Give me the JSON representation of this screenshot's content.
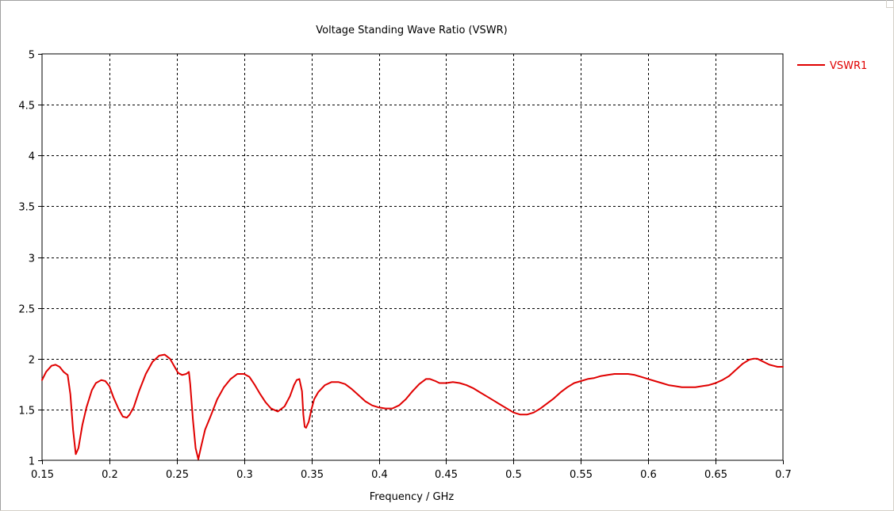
{
  "chart_data": {
    "type": "line",
    "title": "Voltage Standing Wave Ratio (VSWR)",
    "xlabel": "Frequency / GHz",
    "ylabel": "",
    "xlim": [
      0.15,
      0.7
    ],
    "ylim": [
      1,
      5
    ],
    "xticks": [
      "0.15",
      "0.2",
      "0.25",
      "0.3",
      "0.35",
      "0.4",
      "0.45",
      "0.5",
      "0.55",
      "0.6",
      "0.65",
      "0.7"
    ],
    "yticks": [
      "1",
      "1.5",
      "2",
      "2.5",
      "3",
      "3.5",
      "4",
      "4.5",
      "5"
    ],
    "grid": true,
    "legend_position": "top-right",
    "series": [
      {
        "name": "VSWR1",
        "color": "#e00000",
        "x": [
          0.15,
          0.153,
          0.157,
          0.16,
          0.163,
          0.166,
          0.169,
          0.171,
          0.173,
          0.175,
          0.177,
          0.18,
          0.183,
          0.187,
          0.19,
          0.194,
          0.197,
          0.2,
          0.203,
          0.207,
          0.21,
          0.213,
          0.215,
          0.218,
          0.222,
          0.227,
          0.232,
          0.237,
          0.241,
          0.245,
          0.248,
          0.251,
          0.254,
          0.257,
          0.259,
          0.26,
          0.262,
          0.264,
          0.266,
          0.268,
          0.271,
          0.275,
          0.28,
          0.285,
          0.29,
          0.295,
          0.3,
          0.304,
          0.308,
          0.312,
          0.316,
          0.32,
          0.325,
          0.33,
          0.334,
          0.337,
          0.339,
          0.341,
          0.343,
          0.344,
          0.345,
          0.346,
          0.348,
          0.35,
          0.352,
          0.355,
          0.36,
          0.365,
          0.37,
          0.375,
          0.38,
          0.385,
          0.39,
          0.395,
          0.4,
          0.405,
          0.41,
          0.415,
          0.42,
          0.425,
          0.43,
          0.435,
          0.438,
          0.442,
          0.445,
          0.45,
          0.455,
          0.46,
          0.465,
          0.47,
          0.475,
          0.48,
          0.485,
          0.49,
          0.495,
          0.5,
          0.505,
          0.51,
          0.515,
          0.52,
          0.525,
          0.53,
          0.535,
          0.54,
          0.545,
          0.55,
          0.555,
          0.56,
          0.565,
          0.57,
          0.575,
          0.58,
          0.585,
          0.59,
          0.595,
          0.6,
          0.605,
          0.61,
          0.615,
          0.62,
          0.625,
          0.63,
          0.635,
          0.64,
          0.645,
          0.65,
          0.655,
          0.66,
          0.665,
          0.67,
          0.675,
          0.678,
          0.681,
          0.684,
          0.687,
          0.69,
          0.693,
          0.696,
          0.7
        ],
        "y": [
          1.79,
          1.87,
          1.93,
          1.94,
          1.92,
          1.87,
          1.84,
          1.65,
          1.3,
          1.06,
          1.12,
          1.35,
          1.52,
          1.69,
          1.76,
          1.79,
          1.78,
          1.73,
          1.62,
          1.5,
          1.43,
          1.42,
          1.45,
          1.52,
          1.68,
          1.85,
          1.97,
          2.03,
          2.04,
          2.0,
          1.93,
          1.86,
          1.84,
          1.85,
          1.87,
          1.75,
          1.4,
          1.12,
          1.01,
          1.13,
          1.3,
          1.43,
          1.6,
          1.72,
          1.8,
          1.85,
          1.85,
          1.82,
          1.74,
          1.65,
          1.57,
          1.51,
          1.48,
          1.53,
          1.63,
          1.74,
          1.79,
          1.8,
          1.68,
          1.45,
          1.33,
          1.32,
          1.38,
          1.5,
          1.6,
          1.67,
          1.74,
          1.77,
          1.77,
          1.75,
          1.7,
          1.64,
          1.58,
          1.54,
          1.52,
          1.51,
          1.51,
          1.54,
          1.6,
          1.68,
          1.75,
          1.8,
          1.8,
          1.78,
          1.76,
          1.76,
          1.77,
          1.76,
          1.74,
          1.71,
          1.67,
          1.63,
          1.59,
          1.55,
          1.51,
          1.47,
          1.45,
          1.45,
          1.47,
          1.51,
          1.56,
          1.61,
          1.67,
          1.72,
          1.76,
          1.78,
          1.8,
          1.81,
          1.83,
          1.84,
          1.85,
          1.85,
          1.85,
          1.84,
          1.82,
          1.8,
          1.78,
          1.76,
          1.74,
          1.73,
          1.72,
          1.72,
          1.72,
          1.73,
          1.74,
          1.76,
          1.79,
          1.83,
          1.89,
          1.95,
          1.99,
          2.0,
          2.0,
          1.98,
          1.96,
          1.94,
          1.93,
          1.92,
          1.92
        ]
      }
    ]
  }
}
